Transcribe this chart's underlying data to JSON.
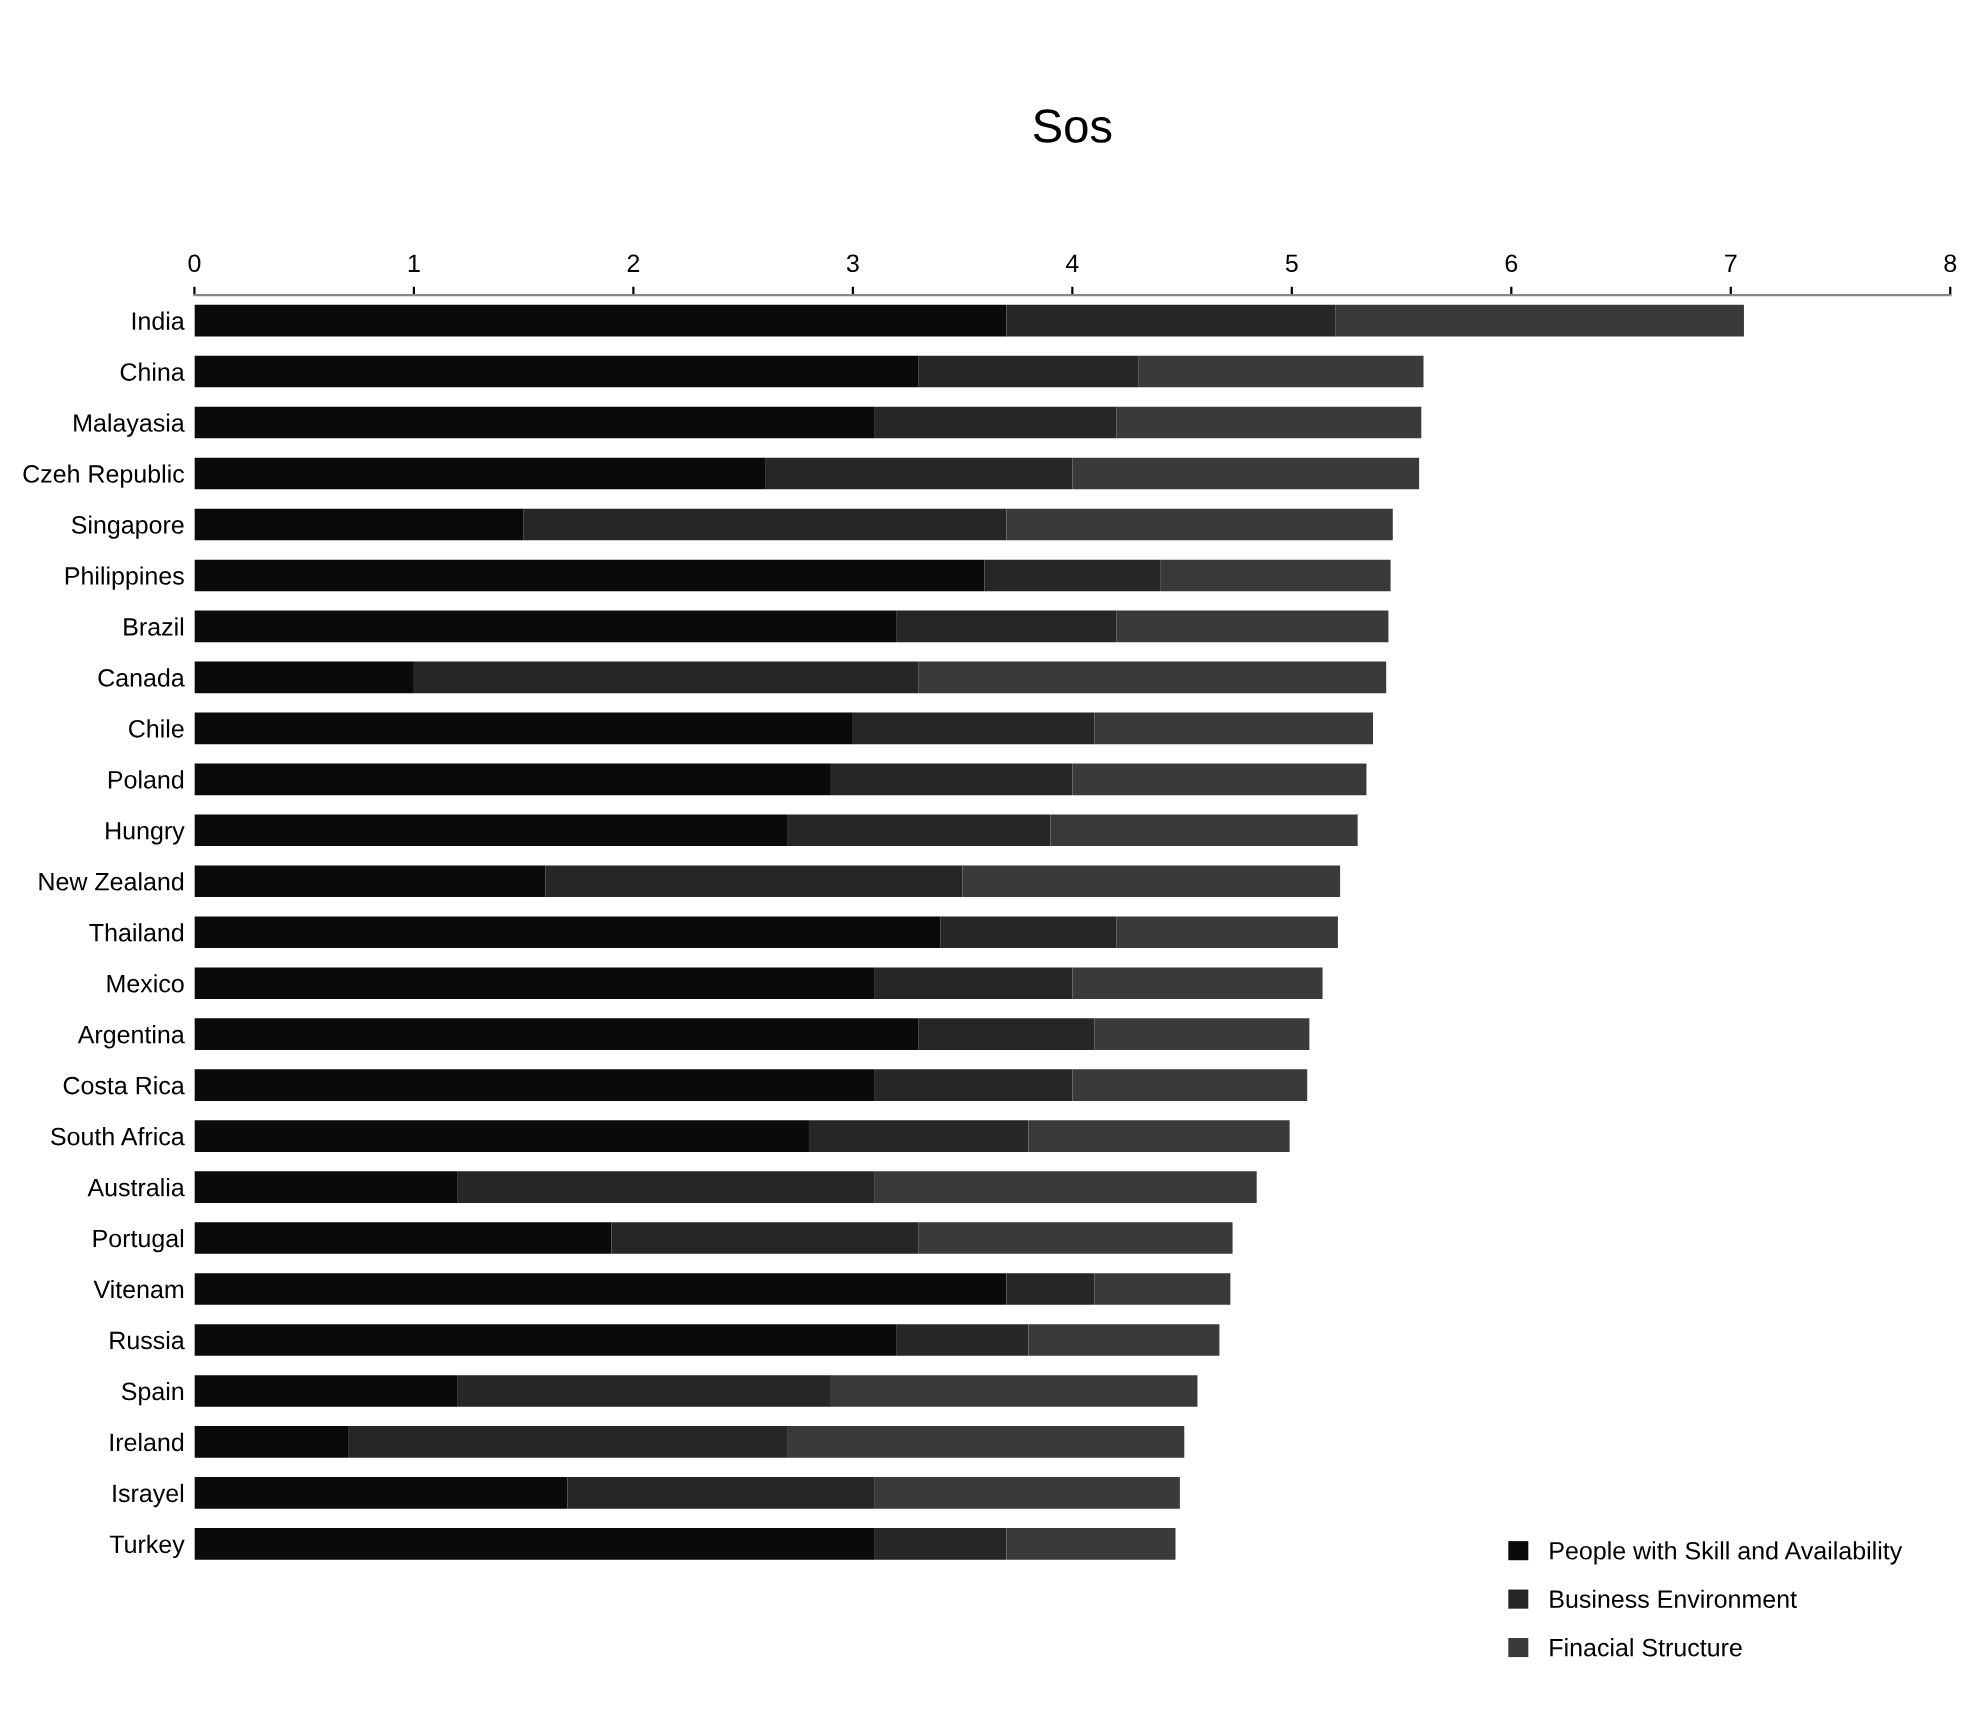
{
  "chart_data": {
    "type": "bar",
    "title": "Sos",
    "orientation": "horizontal",
    "stacked": true,
    "categories": [
      "India",
      "China",
      "Malayasia",
      "Czeh Republic",
      "Singapore",
      "Philippines",
      "Brazil",
      "Canada",
      "Chile",
      "Poland",
      "Hungry",
      "New Zealand",
      "Thailand",
      "Mexico",
      "Argentina",
      "Costa Rica",
      "South Africa",
      "Australia",
      "Portugal",
      "Vitenam",
      "Russia",
      "Spain",
      "Ireland",
      "Israyel",
      "Turkey"
    ],
    "series": [
      {
        "name": "People with Skill and Availability",
        "color": "#0a0a0a",
        "values": [
          3.7,
          3.3,
          3.1,
          2.6,
          1.5,
          3.6,
          3.2,
          1.0,
          3.0,
          2.9,
          2.7,
          1.6,
          3.4,
          3.1,
          3.3,
          3.1,
          2.8,
          1.2,
          1.9,
          3.7,
          3.2,
          1.2,
          0.7,
          1.7,
          3.1
        ]
      },
      {
        "name": "Business Environment",
        "color": "#262626",
        "values": [
          1.5,
          1.0,
          1.1,
          1.4,
          2.2,
          0.8,
          1.0,
          2.3,
          1.1,
          1.1,
          1.2,
          1.9,
          0.8,
          0.9,
          0.8,
          0.9,
          1.0,
          1.9,
          1.4,
          0.4,
          0.6,
          1.7,
          2.0,
          1.4,
          0.6
        ]
      },
      {
        "name": "Finacial Structure",
        "color": "#3a3a3a",
        "values": [
          1.86,
          1.3,
          1.39,
          1.58,
          1.76,
          1.05,
          1.24,
          2.13,
          1.27,
          1.34,
          1.4,
          1.72,
          1.01,
          1.14,
          0.98,
          1.07,
          1.19,
          1.74,
          1.43,
          0.62,
          0.87,
          1.67,
          1.81,
          1.39,
          0.77
        ]
      }
    ],
    "xlim": [
      0,
      8
    ],
    "xticks": [
      0,
      1,
      2,
      3,
      4,
      5,
      6,
      7,
      8
    ],
    "grid": false,
    "legend": "bottom right"
  }
}
